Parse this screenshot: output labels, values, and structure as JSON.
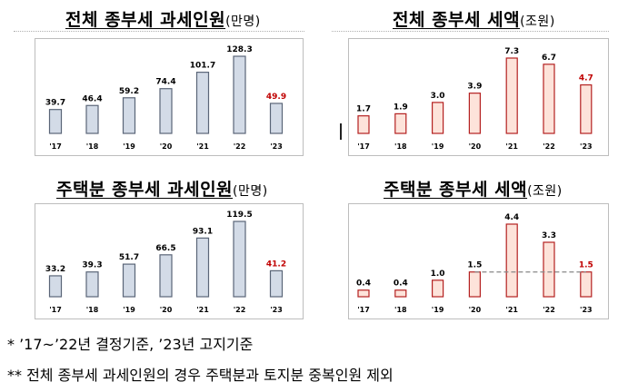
{
  "panels": [
    {
      "title": "전체 종부세 과세인원",
      "unit": "(만명)"
    },
    {
      "title": "전체 종부세 세액",
      "unit": "(조원)"
    },
    {
      "title": "주택분 종부세 과세인원",
      "unit": "(만명)"
    },
    {
      "title": "주택분 종부세 세액",
      "unit": "(조원)"
    }
  ],
  "colors": {
    "people_fill": "#d3dbe7",
    "people_stroke": "#5a6577",
    "tax_fill": "#fde3da",
    "tax_stroke": "#b42020",
    "highlight_label": "#c00000",
    "reference_line": "#888888"
  },
  "chart_data": [
    {
      "type": "bar",
      "title": "전체 종부세 과세인원",
      "unit": "(만명)",
      "categories": [
        "'17",
        "'18",
        "'19",
        "'20",
        "'21",
        "'22",
        "'23"
      ],
      "values": [
        39.7,
        46.4,
        59.2,
        74.4,
        101.7,
        128.3,
        49.9
      ],
      "value_labels": [
        "39.7",
        "46.4",
        "59.2",
        "74.4",
        "101.7",
        "128.3",
        "49.9"
      ],
      "ylim": [
        0,
        128.3
      ],
      "highlight_index": 6,
      "grid": false
    },
    {
      "type": "bar",
      "title": "전체 종부세 세액",
      "unit": "(조원)",
      "categories": [
        "'17",
        "'18",
        "'19",
        "'20",
        "'21",
        "'22",
        "'23"
      ],
      "values": [
        1.7,
        1.9,
        3.0,
        3.9,
        7.3,
        6.7,
        4.7
      ],
      "value_labels": [
        "1.7",
        "1.9",
        "3.0",
        "3.9",
        "7.3",
        "6.7",
        "4.7"
      ],
      "ylim": [
        0,
        7.3
      ],
      "highlight_index": 6,
      "grid": false
    },
    {
      "type": "bar",
      "title": "주택분 종부세 과세인원",
      "unit": "(만명)",
      "categories": [
        "'17",
        "'18",
        "'19",
        "'20",
        "'21",
        "'22",
        "'23"
      ],
      "values": [
        33.2,
        39.3,
        51.7,
        66.5,
        93.1,
        119.5,
        41.2
      ],
      "value_labels": [
        "33.2",
        "39.3",
        "51.7",
        "66.5",
        "93.1",
        "119.5",
        "41.2"
      ],
      "ylim": [
        0,
        119.5
      ],
      "highlight_index": 6,
      "grid": false
    },
    {
      "type": "bar",
      "title": "주택분 종부세 세액",
      "unit": "(조원)",
      "categories": [
        "'17",
        "'18",
        "'19",
        "'20",
        "'21",
        "'22",
        "'23"
      ],
      "values": [
        0.4,
        0.4,
        1.0,
        1.5,
        4.4,
        3.3,
        1.5
      ],
      "value_labels": [
        "0.4",
        "0.4",
        "1.0",
        "1.5",
        "4.4",
        "3.3",
        "1.5"
      ],
      "ylim": [
        0,
        4.4
      ],
      "highlight_index": 6,
      "reference_line": {
        "from_index": 3,
        "to_index": 6,
        "value": 1.5
      },
      "grid": false
    }
  ],
  "footnotes": [
    "*  ’17~’22년 결정기준, ’23년 고지기준",
    "**  전체 종부세 과세인원의 경우 주택분과 토지분 중복인원 제외"
  ]
}
